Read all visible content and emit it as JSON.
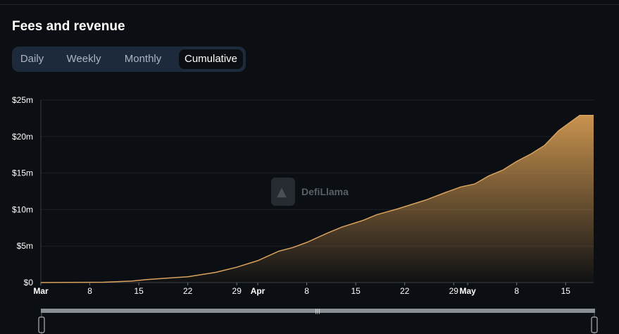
{
  "header": {
    "title": "Fees and revenue"
  },
  "tabs": [
    {
      "label": "Daily",
      "active": false
    },
    {
      "label": "Weekly",
      "active": false
    },
    {
      "label": "Monthly",
      "active": false
    },
    {
      "label": "Cumulative",
      "active": true
    }
  ],
  "watermark": {
    "text": "DefiLlama"
  },
  "colors": {
    "accent": "#d39a52",
    "background": "#0b0e12"
  },
  "chart_data": {
    "type": "area",
    "title": "",
    "xlabel": "",
    "ylabel": "",
    "ylim": [
      0,
      25
    ],
    "y_unit": "millions USD",
    "yticks": [
      "$0",
      "$5m",
      "$10m",
      "$15m",
      "$20m",
      "$25m"
    ],
    "xticks": [
      "Mar",
      "8",
      "15",
      "22",
      "29",
      "Apr",
      "8",
      "15",
      "22",
      "29",
      "May",
      "8",
      "15"
    ],
    "x_start": "2024-03-01",
    "x_end": "2024-05-19",
    "grid": true,
    "legend": "none",
    "series": [
      {
        "x": [
          "2024-03-01",
          "2024-03-05",
          "2024-03-10",
          "2024-03-14",
          "2024-03-16",
          "2024-03-19",
          "2024-03-22",
          "2024-03-26",
          "2024-03-29",
          "2024-04-01",
          "2024-04-04",
          "2024-04-06",
          "2024-04-08",
          "2024-04-11",
          "2024-04-13",
          "2024-04-16",
          "2024-04-18",
          "2024-04-21",
          "2024-04-23",
          "2024-04-25",
          "2024-04-28",
          "2024-04-30",
          "2024-05-02",
          "2024-05-04",
          "2024-05-06",
          "2024-05-08",
          "2024-05-10",
          "2024-05-12",
          "2024-05-14",
          "2024-05-16",
          "2024-05-17",
          "2024-05-19"
        ],
        "y": [
          0.0,
          0.02,
          0.05,
          0.2,
          0.4,
          0.6,
          0.8,
          1.4,
          2.1,
          3.0,
          4.3,
          4.8,
          5.5,
          6.8,
          7.6,
          8.5,
          9.3,
          10.1,
          10.7,
          11.3,
          12.4,
          13.1,
          13.5,
          14.6,
          15.4,
          16.6,
          17.6,
          18.8,
          20.8,
          22.2,
          22.9,
          22.9
        ]
      }
    ]
  }
}
